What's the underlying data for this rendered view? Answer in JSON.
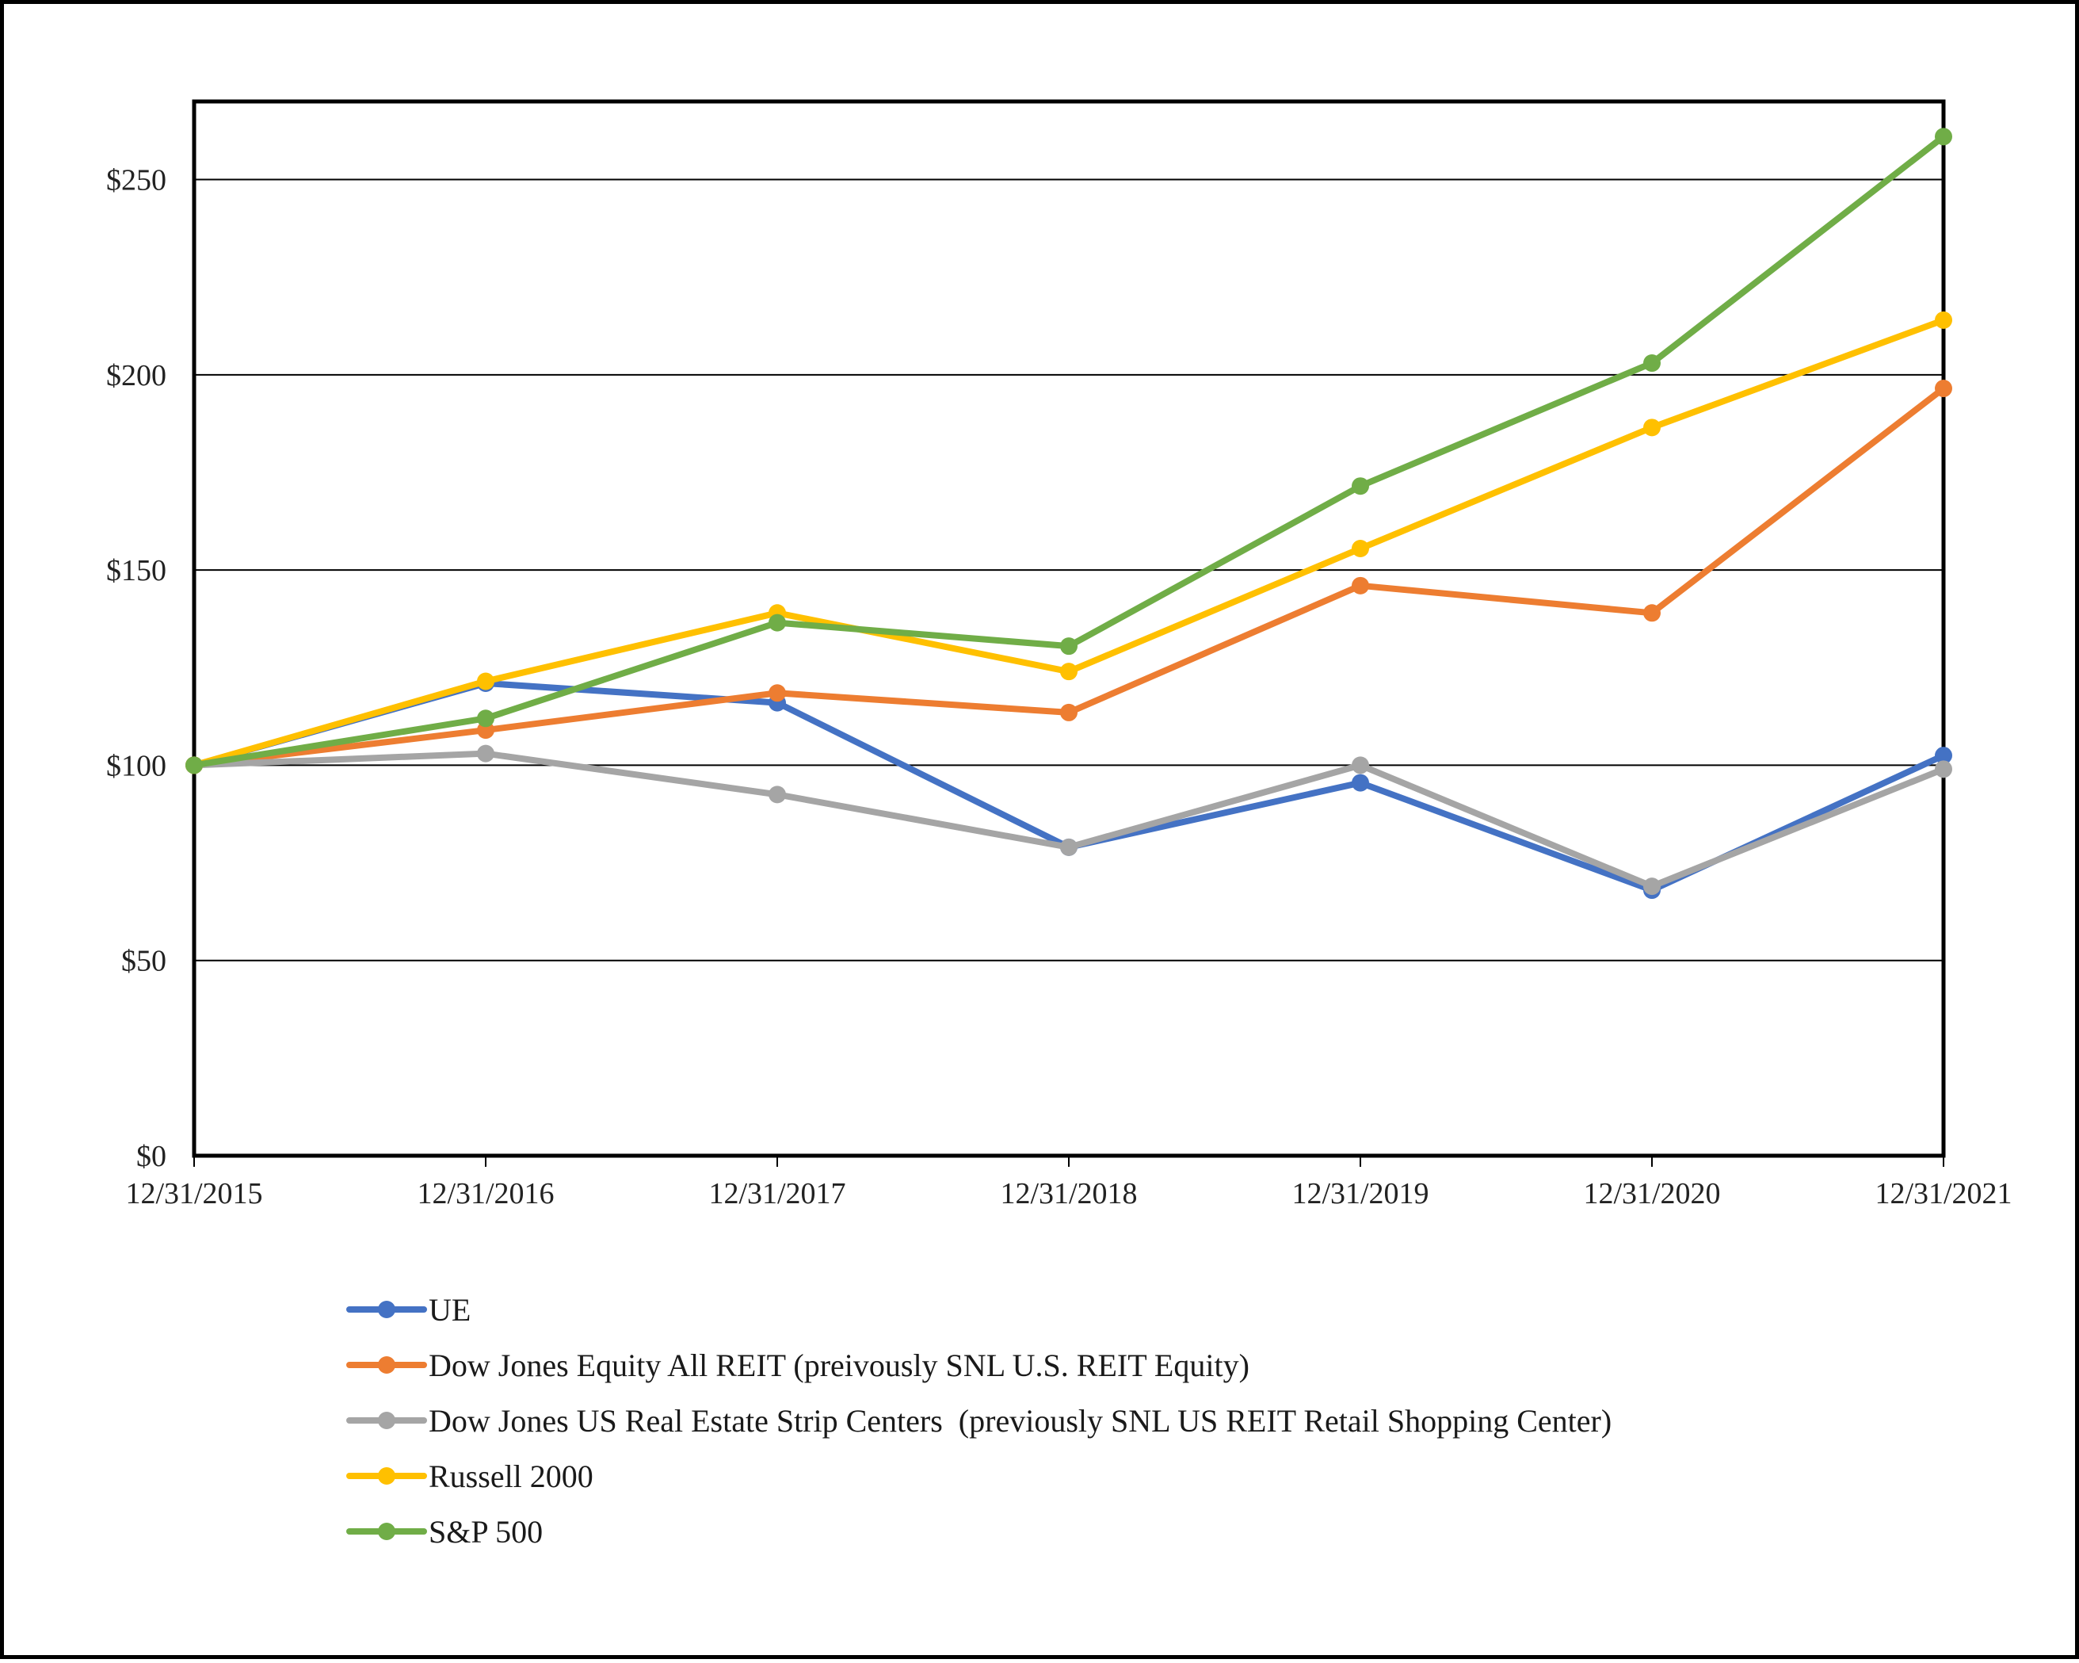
{
  "chart_data": {
    "type": "line",
    "title": "",
    "xlabel": "",
    "ylabel": "",
    "ylim": [
      0,
      270
    ],
    "yticks": [
      0,
      50,
      100,
      150,
      200,
      250
    ],
    "ytick_labels": [
      "$0",
      "$50",
      "$100",
      "$150",
      "$200",
      "$250"
    ],
    "grid": true,
    "legend_position": "bottom",
    "categories": [
      "12/31/2015",
      "12/31/2016",
      "12/31/2017",
      "12/31/2018",
      "12/31/2019",
      "12/31/2020",
      "12/31/2021"
    ],
    "series": [
      {
        "name": "UE",
        "color": "#4472C4",
        "values": [
          100,
          121,
          116,
          79,
          95.5,
          68,
          102.5
        ]
      },
      {
        "name": "Dow Jones Equity All REIT (preivously SNL U.S. REIT Equity)",
        "color": "#ED7D31",
        "values": [
          100,
          109,
          118.5,
          113.5,
          146,
          139,
          196.5
        ]
      },
      {
        "name": "Dow Jones US Real Estate Strip Centers  (previously SNL US REIT Retail Shopping Center)",
        "color": "#A5A5A5",
        "values": [
          100,
          103,
          92.5,
          79,
          100,
          69,
          99
        ]
      },
      {
        "name": "Russell 2000",
        "color": "#FFC000",
        "values": [
          100,
          121.5,
          139,
          124,
          155.5,
          186.5,
          214
        ]
      },
      {
        "name": "S&P 500",
        "color": "#70AD47",
        "values": [
          100,
          112,
          136.5,
          130.5,
          171.5,
          203,
          261
        ]
      }
    ]
  }
}
